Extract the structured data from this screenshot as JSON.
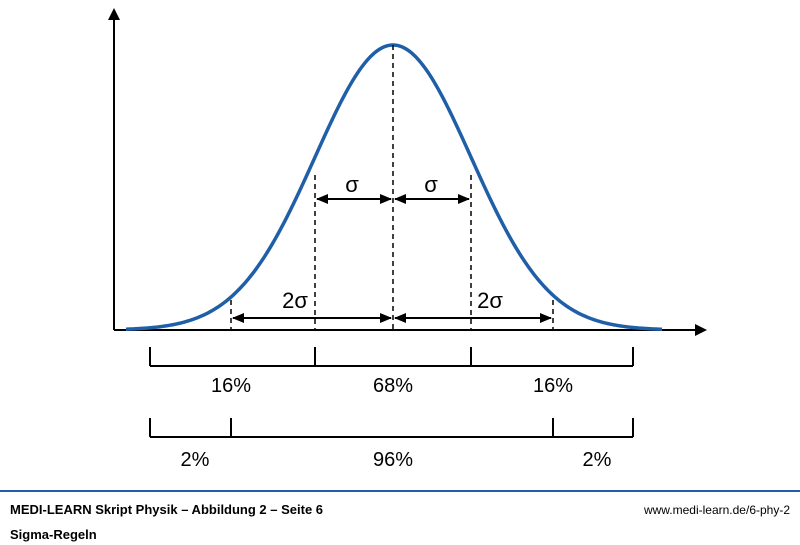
{
  "colors": {
    "curve": "#1f5fa8",
    "axis": "#000000",
    "footer_rule": "#1f5fa8"
  },
  "diagram": {
    "sigma_label_left": "σ",
    "sigma_label_right": "σ",
    "two_sigma_label_left": "2σ",
    "two_sigma_label_right": "2σ",
    "row1": {
      "left": "16%",
      "middle": "68%",
      "right": "16%"
    },
    "row2": {
      "left": "2%",
      "middle": "96%",
      "right": "2%"
    }
  },
  "footer": {
    "title": "MEDI-LEARN Skript Physik – Abbildung 2 – Seite 6",
    "url": "www.medi-learn.de/6-phy-2",
    "subtitle": "Sigma-Regeln"
  }
}
